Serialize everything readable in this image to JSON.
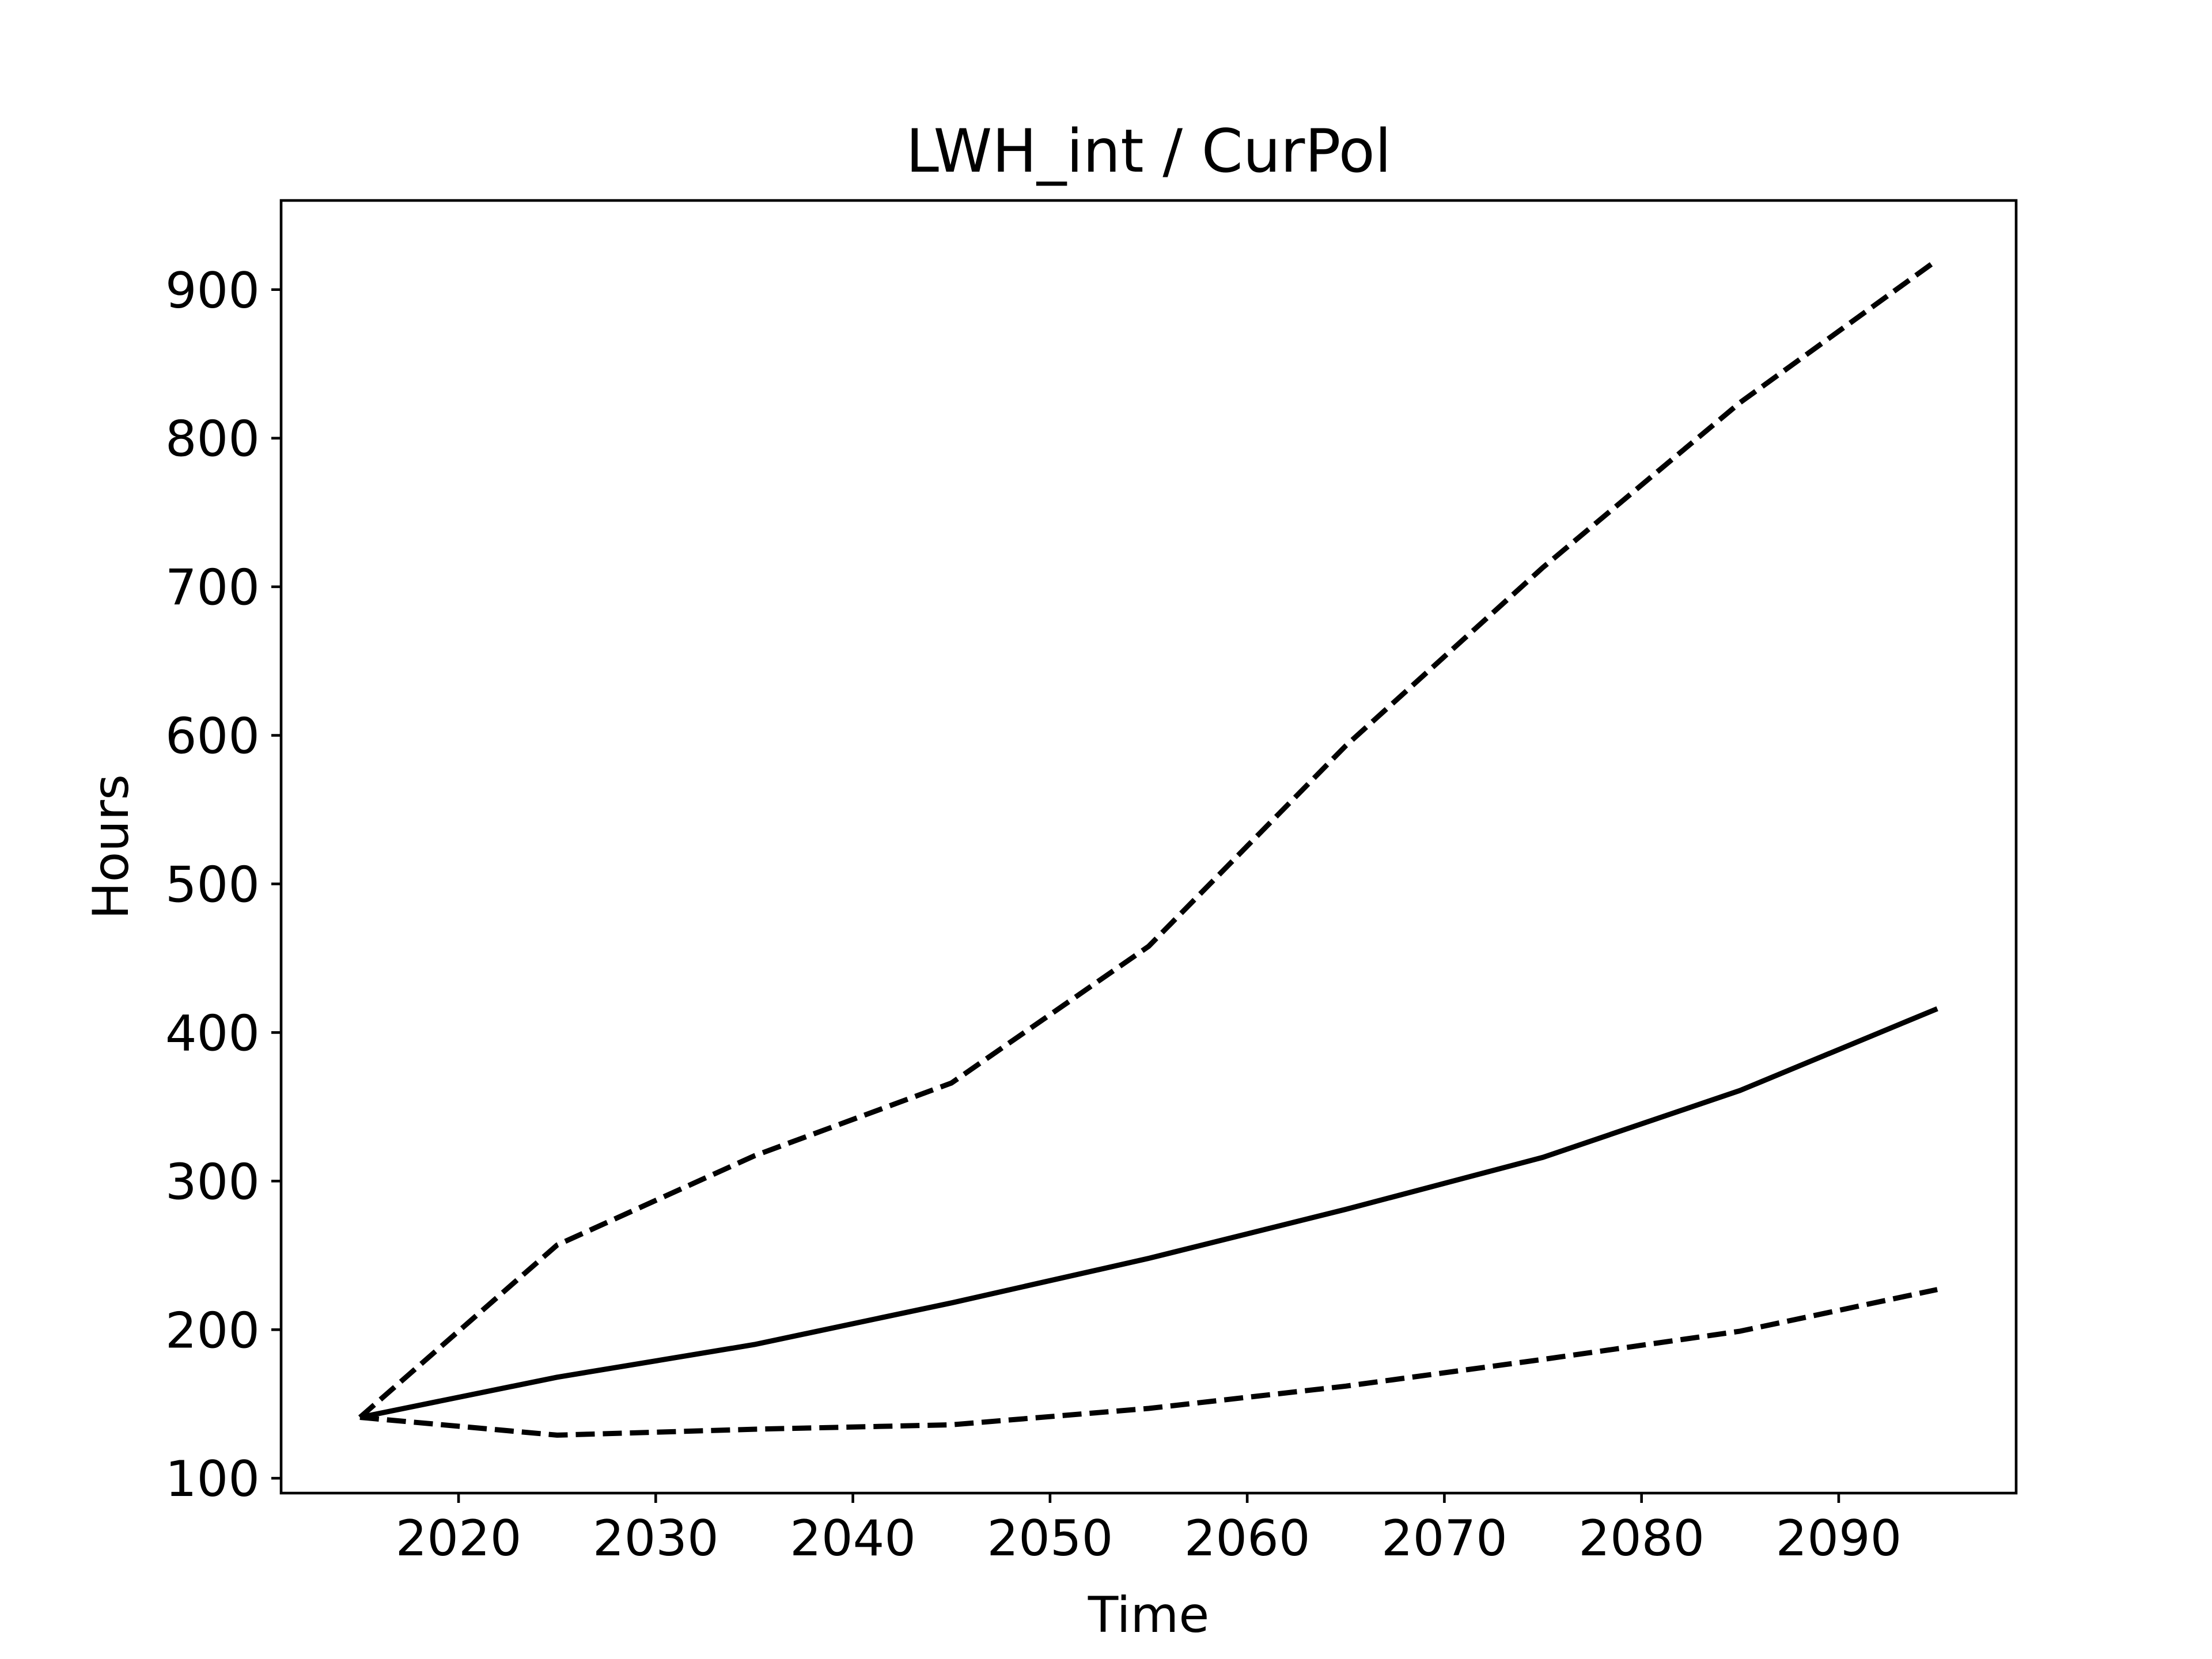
{
  "chart_data": {
    "type": "line",
    "title": "LWH_int / CurPol",
    "xlabel": "Time",
    "ylabel": "Hours",
    "x": [
      2015,
      2025,
      2035,
      2045,
      2055,
      2065,
      2075,
      2085,
      2095
    ],
    "xlim": [
      2011,
      2099
    ],
    "ylim": [
      90,
      960
    ],
    "xticks": [
      2020,
      2030,
      2040,
      2050,
      2060,
      2070,
      2080,
      2090
    ],
    "yticks": [
      100,
      200,
      300,
      400,
      500,
      600,
      700,
      800,
      900
    ],
    "grid": false,
    "line_color": "#000000",
    "series": [
      {
        "style": "solid",
        "values": [
          141,
          168,
          190,
          218,
          248,
          281,
          316,
          361,
          416
        ]
      },
      {
        "style": "dashed",
        "values": [
          141,
          257,
          317,
          366,
          458,
          593,
          713,
          824,
          920
        ]
      },
      {
        "style": "dashed",
        "values": [
          141,
          129,
          133,
          136,
          147,
          162,
          180,
          199,
          227
        ]
      }
    ]
  }
}
